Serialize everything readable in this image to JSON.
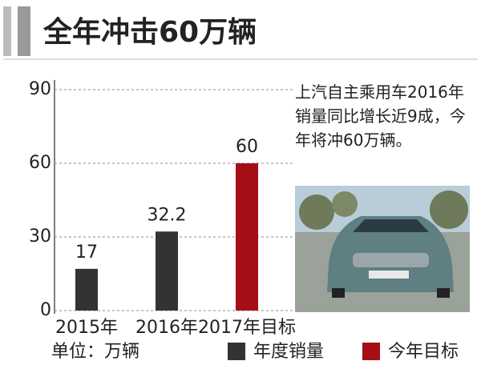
{
  "chart_data": {
    "type": "bar",
    "title": "全年冲击60万辆",
    "categories": [
      "2015年",
      "2016年",
      "2017年目标"
    ],
    "series": [
      {
        "name": "年度销量",
        "color": "#333333",
        "values": [
          17,
          32.2,
          null
        ]
      },
      {
        "name": "今年目标",
        "color": "#a50f15",
        "values": [
          null,
          null,
          60
        ]
      }
    ],
    "ylim": [
      0,
      90
    ],
    "yticks": [
      0,
      30,
      60,
      90
    ],
    "grid": true,
    "unit_label": "单位：万辆",
    "annotation": "上汽自主乘用车2016年销量同比增长近9成，今年将冲60万辆。"
  }
}
